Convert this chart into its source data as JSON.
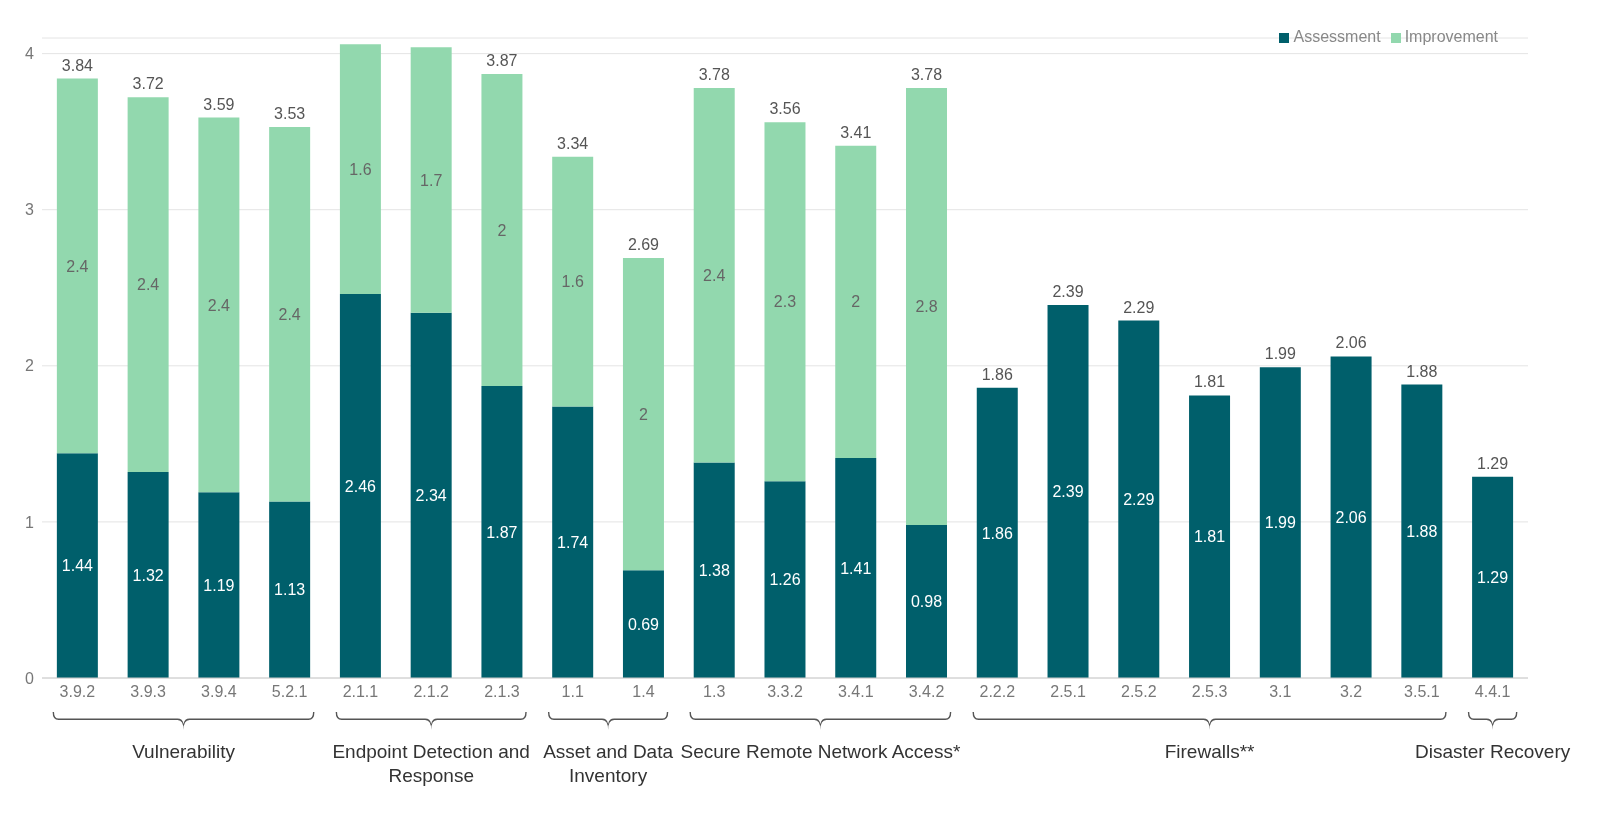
{
  "chart_data": {
    "type": "bar",
    "stacked": true,
    "categories": [
      "3.9.2",
      "3.9.3",
      "3.9.4",
      "5.2.1",
      "2.1.1",
      "2.1.2",
      "2.1.3",
      "1.1",
      "1.4",
      "1.3",
      "3.3.2",
      "3.4.1",
      "3.4.2",
      "2.2.2",
      "2.5.1",
      "2.5.2",
      "2.5.3",
      "3.1",
      "3.2",
      "3.5.1",
      "4.4.1"
    ],
    "series": [
      {
        "name": "Assessment",
        "color": "#005f6b",
        "values": [
          1.44,
          1.32,
          1.19,
          1.13,
          2.46,
          2.34,
          1.87,
          1.74,
          0.69,
          1.38,
          1.26,
          1.41,
          0.98,
          1.86,
          2.39,
          2.29,
          1.81,
          1.99,
          2.06,
          1.88,
          1.29
        ]
      },
      {
        "name": "Improvement",
        "color": "#92d8ae",
        "values": [
          2.4,
          2.4,
          2.4,
          2.4,
          1.6,
          1.7,
          2,
          1.6,
          2,
          2.4,
          2.3,
          2,
          2.8,
          null,
          null,
          null,
          null,
          null,
          null,
          null,
          null
        ]
      }
    ],
    "totals": [
      "3.84",
      "3.72",
      "3.59",
      "3.53",
      null,
      null,
      "3.87",
      "3.34",
      "2.69",
      "3.78",
      "3.56",
      "3.41",
      "3.78",
      "1.86",
      "2.39",
      "2.29",
      "1.81",
      "1.99",
      "2.06",
      "1.88",
      "1.29"
    ],
    "data_labels": true,
    "ylim": [
      0,
      4.1
    ],
    "yticks": [
      0,
      1,
      2,
      3,
      4
    ],
    "grid": "y",
    "legend": "top right",
    "annotations": [
      "Vulnerability",
      "Endpoint Detection and Response",
      "Asset and Data Inventory",
      "Secure Remote Network Access*",
      "Firewalls**",
      "Disaster Recovery"
    ]
  }
}
